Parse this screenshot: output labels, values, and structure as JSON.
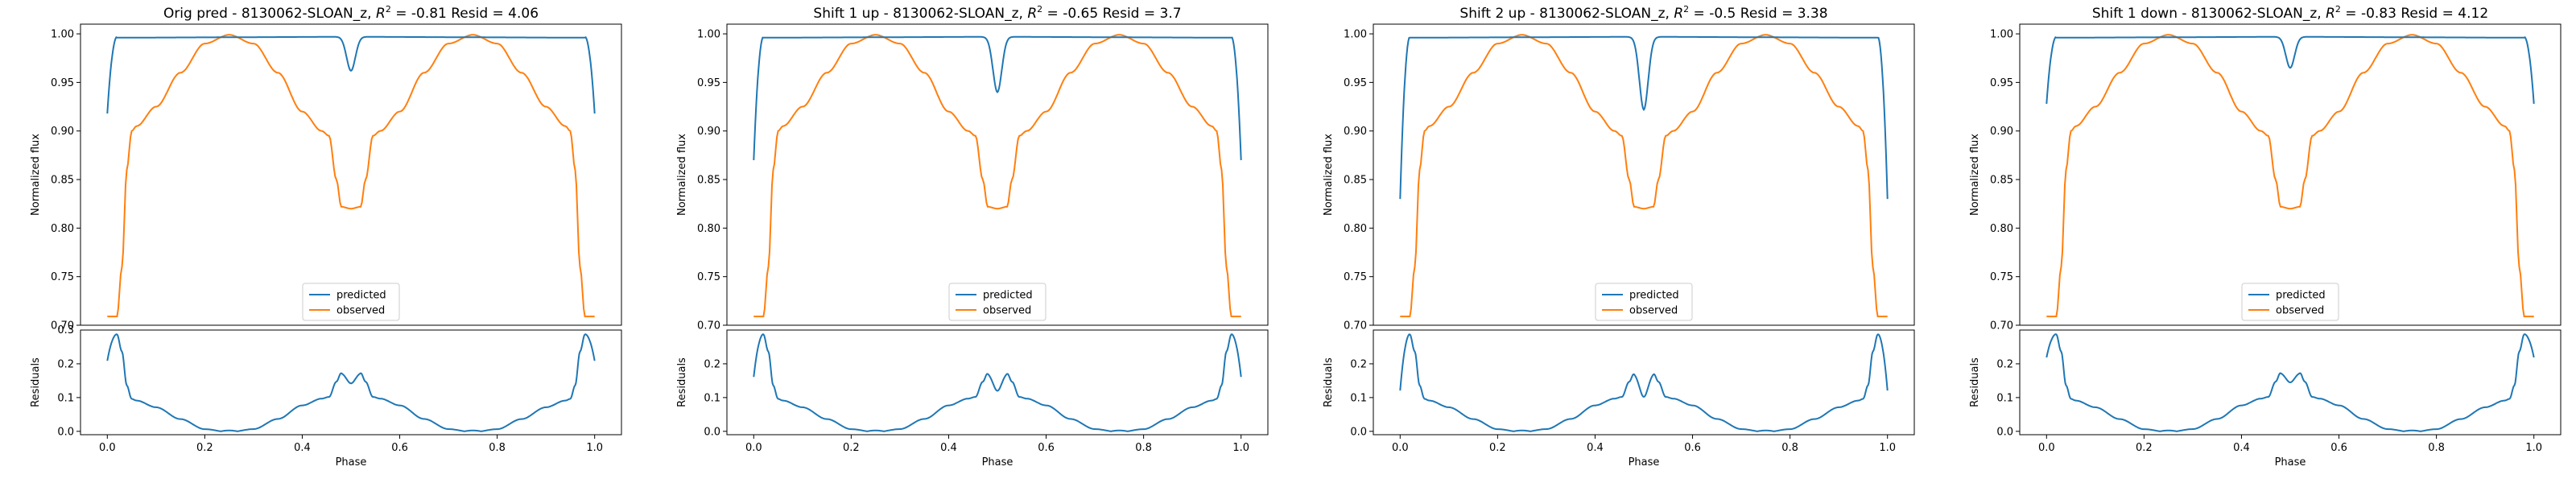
{
  "figure": {
    "background": "#ffffff"
  },
  "colors": {
    "predicted": "#1f77b4",
    "observed": "#ff7f0e",
    "axes": "#000000"
  },
  "legend": {
    "placement": "lower center",
    "entries": [
      "predicted",
      "observed"
    ]
  },
  "chart_data": [
    {
      "type": "line",
      "title_prefix": "Orig pred - 8130062-SLOAN_z, ",
      "title_r2": "R",
      "title_r2_sup": "2",
      "title_suffix": " = -0.81 Resid = 4.06",
      "top": {
        "ylabel": "Normalized flux",
        "ylim": [
          0.7,
          1.01
        ],
        "yticks": [
          "0.70",
          "0.75",
          "0.80",
          "0.85",
          "0.90",
          "0.95",
          "1.00"
        ],
        "predicted": {
          "edge": 0.918,
          "plateau": 0.997,
          "dip": 0.962
        }
      },
      "bottom": {
        "ylabel": "Residuals",
        "xlabel": "Phase",
        "ylim": [
          0,
          0.3
        ],
        "yticks": [
          "0.0",
          "0.1",
          "0.2"
        ],
        "top_tick": "0.3",
        "xticks": [
          "0.0",
          "0.2",
          "0.4",
          "0.6",
          "0.8",
          "1.0"
        ],
        "peaks": {
          "edge": 0.21,
          "center_dip": 0.15
        }
      }
    },
    {
      "type": "line",
      "title_prefix": "Shift 1 up - 8130062-SLOAN_z, ",
      "title_r2": "R",
      "title_r2_sup": "2",
      "title_suffix": " = -0.65 Resid = 3.7",
      "top": {
        "ylabel": "Normalized flux",
        "ylim": [
          0.7,
          1.01
        ],
        "yticks": [
          "0.70",
          "0.75",
          "0.80",
          "0.85",
          "0.90",
          "0.95",
          "1.00"
        ],
        "predicted": {
          "edge": 0.87,
          "plateau": 0.997,
          "dip": 0.94
        }
      },
      "bottom": {
        "ylabel": "Residuals",
        "xlabel": "Phase",
        "ylim": [
          0,
          0.3
        ],
        "yticks": [
          "0.0",
          "0.1",
          "0.2"
        ],
        "top_tick": "",
        "xticks": [
          "0.0",
          "0.2",
          "0.4",
          "0.6",
          "0.8",
          "1.0"
        ],
        "peaks": {
          "edge": 0.16,
          "center_dip": 0.12
        }
      }
    },
    {
      "type": "line",
      "title_prefix": "Shift 2 up - 8130062-SLOAN_z, ",
      "title_r2": "R",
      "title_r2_sup": "2",
      "title_suffix": " = -0.5 Resid = 3.38",
      "top": {
        "ylabel": "Normalized flux",
        "ylim": [
          0.7,
          1.01
        ],
        "yticks": [
          "0.70",
          "0.75",
          "0.80",
          "0.85",
          "0.90",
          "0.95",
          "1.00"
        ],
        "predicted": {
          "edge": 0.83,
          "plateau": 0.997,
          "dip": 0.922
        }
      },
      "bottom": {
        "ylabel": "Residuals",
        "xlabel": "Phase",
        "ylim": [
          0,
          0.3
        ],
        "yticks": [
          "0.0",
          "0.1",
          "0.2"
        ],
        "top_tick": "",
        "xticks": [
          "0.0",
          "0.2",
          "0.4",
          "0.6",
          "0.8",
          "1.0"
        ],
        "peaks": {
          "edge": 0.12,
          "center_dip": 0.1
        }
      }
    },
    {
      "type": "line",
      "title_prefix": "Shift 1 down - 8130062-SLOAN_z, ",
      "title_r2": "R",
      "title_r2_sup": "2",
      "title_suffix": " = -0.83 Resid = 4.12",
      "top": {
        "ylabel": "Normalized flux",
        "ylim": [
          0.7,
          1.01
        ],
        "yticks": [
          "0.70",
          "0.75",
          "0.80",
          "0.85",
          "0.90",
          "0.95",
          "1.00"
        ],
        "predicted": {
          "edge": 0.928,
          "plateau": 0.997,
          "dip": 0.965
        }
      },
      "bottom": {
        "ylabel": "Residuals",
        "xlabel": "Phase",
        "ylim": [
          0,
          0.3
        ],
        "yticks": [
          "0.0",
          "0.1",
          "0.2"
        ],
        "top_tick": "",
        "xticks": [
          "0.0",
          "0.2",
          "0.4",
          "0.6",
          "0.8",
          "1.0"
        ],
        "peaks": {
          "edge": 0.22,
          "center_dip": 0.155
        }
      }
    }
  ],
  "observed_curve": {
    "phase": [
      0.0,
      0.02,
      0.03,
      0.04,
      0.05,
      0.06,
      0.1,
      0.15,
      0.2,
      0.25,
      0.3,
      0.35,
      0.4,
      0.44,
      0.455,
      0.47,
      0.48,
      0.5,
      0.52,
      0.53,
      0.545,
      0.56,
      0.6,
      0.65,
      0.7,
      0.75,
      0.8,
      0.85,
      0.9,
      0.94,
      0.95,
      0.96,
      0.97,
      0.98,
      1.0
    ],
    "flux": [
      0.709,
      0.709,
      0.76,
      0.86,
      0.9,
      0.905,
      0.925,
      0.96,
      0.99,
      0.999,
      0.99,
      0.96,
      0.92,
      0.9,
      0.895,
      0.85,
      0.822,
      0.82,
      0.822,
      0.85,
      0.895,
      0.9,
      0.92,
      0.96,
      0.99,
      0.999,
      0.99,
      0.96,
      0.925,
      0.905,
      0.9,
      0.86,
      0.76,
      0.709,
      0.709
    ]
  }
}
